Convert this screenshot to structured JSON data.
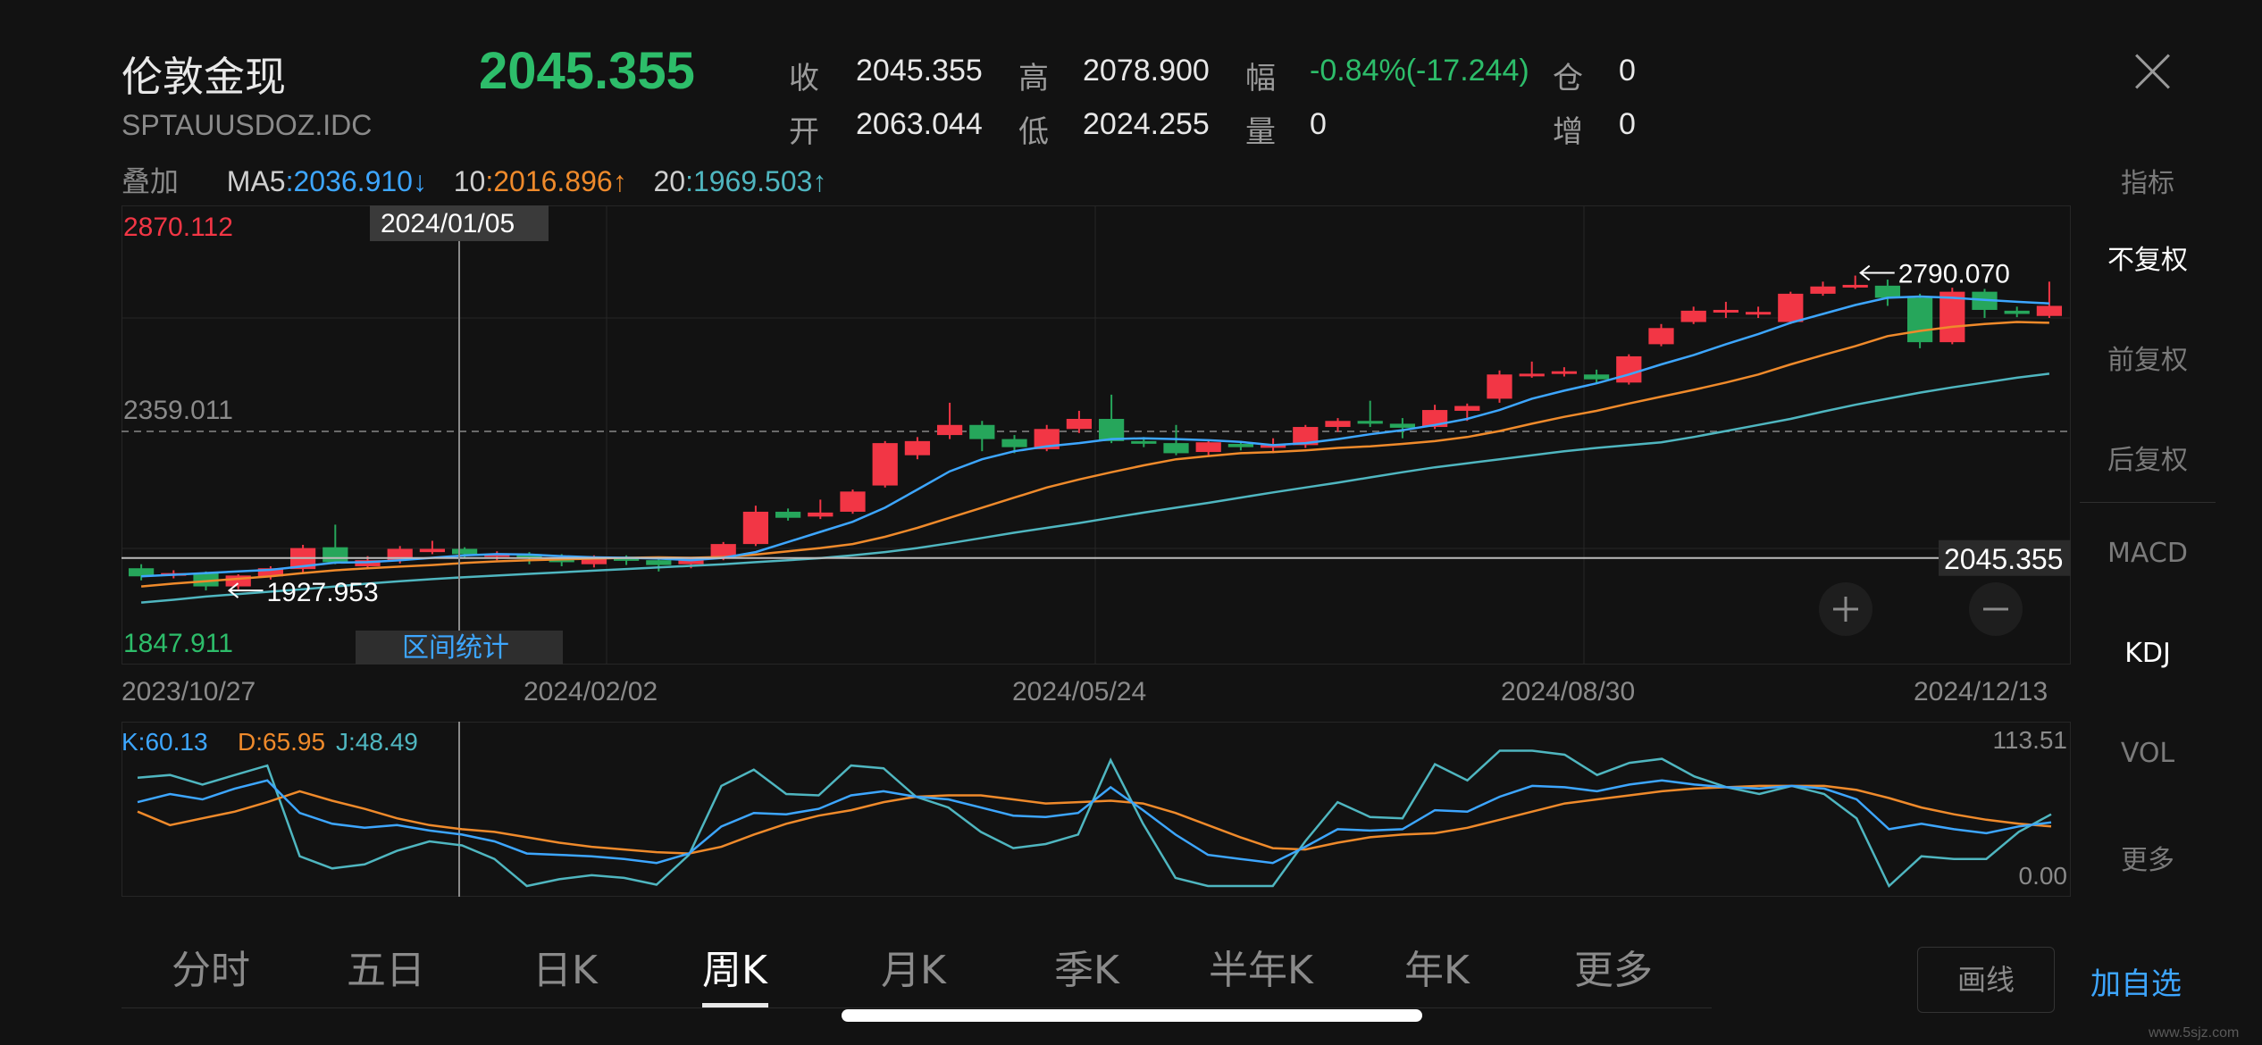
{
  "header": {
    "name": "伦敦金现",
    "code": "SPTAUUSDOZ.IDC",
    "price": "2045.355",
    "quotes": [
      {
        "label": "收",
        "value": "2045.355",
        "color": "#e8e8e8"
      },
      {
        "label": "高",
        "value": "2078.900",
        "color": "#e8e8e8"
      },
      {
        "label": "幅",
        "value": "-0.84%(-17.244)",
        "color": "#2dbd6a"
      },
      {
        "label": "仓",
        "value": "0",
        "color": "#e8e8e8"
      },
      {
        "label": "开",
        "value": "2063.044",
        "color": "#e8e8e8"
      },
      {
        "label": "低",
        "value": "2024.255",
        "color": "#e8e8e8"
      },
      {
        "label": "量",
        "value": "0",
        "color": "#e8e8e8"
      },
      {
        "label": "增",
        "value": "0",
        "color": "#e8e8e8"
      }
    ]
  },
  "ma": {
    "overlay_label": "叠加",
    "ma5_label": "MA5",
    "ma5_sep": ":",
    "ma5_value": "2036.910",
    "ma5_arrow": "↓",
    "ma10_label": "10",
    "ma10_sep": ":",
    "ma10_value": "2016.896",
    "ma10_arrow": "↑",
    "ma20_label": "20",
    "ma20_sep": ":",
    "ma20_value": "1969.503",
    "ma20_arrow": "↑"
  },
  "chart_data": {
    "type": "candlestick",
    "axis_max_label": "2870.112",
    "axis_mid_label": "2359.011",
    "axis_min_label": "1847.911",
    "ylim": [
      1847.911,
      2870.112
    ],
    "high_marker": "2790.070",
    "low_marker": "1927.953",
    "current_price_label": "2045.355",
    "current_price": 2045.355,
    "crosshair_date": "2024/01/05",
    "range_stats_label": "区间统计",
    "x_labels": [
      "2023/10/27",
      "2024/02/02",
      "2024/05/24",
      "2024/08/30",
      "2024/12/13"
    ],
    "colors": {
      "up": "#f23645",
      "down": "#26a65b",
      "ma5": "#3da6ff",
      "ma10": "#ef8a2b",
      "ma20": "#4fb6c0"
    },
    "candles": [
      {
        "o": 2020,
        "c": 2000,
        "h": 2030,
        "l": 1990
      },
      {
        "o": 2003,
        "c": 2008,
        "h": 2015,
        "l": 1995
      },
      {
        "o": 2008,
        "c": 1975,
        "h": 2012,
        "l": 1965
      },
      {
        "o": 1975,
        "c": 2002,
        "h": 2005,
        "l": 1968
      },
      {
        "o": 2000,
        "c": 2020,
        "h": 2025,
        "l": 1992
      },
      {
        "o": 2018,
        "c": 2070,
        "h": 2078,
        "l": 2010
      },
      {
        "o": 2072,
        "c": 2035,
        "h": 2128,
        "l": 2030
      },
      {
        "o": 2025,
        "c": 2040,
        "h": 2050,
        "l": 2018
      },
      {
        "o": 2040,
        "c": 2068,
        "h": 2075,
        "l": 2032
      },
      {
        "o": 2060,
        "c": 2068,
        "h": 2088,
        "l": 2055
      },
      {
        "o": 2068,
        "c": 2055,
        "h": 2072,
        "l": 2045
      },
      {
        "o": 2052,
        "c": 2055,
        "h": 2062,
        "l": 2040
      },
      {
        "o": 2055,
        "c": 2045,
        "h": 2060,
        "l": 2030
      },
      {
        "o": 2045,
        "c": 2035,
        "h": 2055,
        "l": 2025
      },
      {
        "o": 2030,
        "c": 2048,
        "h": 2052,
        "l": 2022
      },
      {
        "o": 2045,
        "c": 2040,
        "h": 2052,
        "l": 2028
      },
      {
        "o": 2040,
        "c": 2028,
        "h": 2045,
        "l": 2012
      },
      {
        "o": 2030,
        "c": 2045,
        "h": 2048,
        "l": 2020
      },
      {
        "o": 2045,
        "c": 2080,
        "h": 2085,
        "l": 2040
      },
      {
        "o": 2080,
        "c": 2160,
        "h": 2175,
        "l": 2075
      },
      {
        "o": 2160,
        "c": 2145,
        "h": 2168,
        "l": 2138
      },
      {
        "o": 2148,
        "c": 2158,
        "h": 2190,
        "l": 2142
      },
      {
        "o": 2160,
        "c": 2210,
        "h": 2215,
        "l": 2155
      },
      {
        "o": 2225,
        "c": 2330,
        "h": 2335,
        "l": 2220
      },
      {
        "o": 2300,
        "c": 2335,
        "h": 2345,
        "l": 2290
      },
      {
        "o": 2350,
        "c": 2375,
        "h": 2430,
        "l": 2340
      },
      {
        "o": 2375,
        "c": 2340,
        "h": 2385,
        "l": 2310
      },
      {
        "o": 2340,
        "c": 2320,
        "h": 2350,
        "l": 2305
      },
      {
        "o": 2315,
        "c": 2365,
        "h": 2375,
        "l": 2310
      },
      {
        "o": 2365,
        "c": 2390,
        "h": 2410,
        "l": 2355
      },
      {
        "o": 2390,
        "c": 2335,
        "h": 2450,
        "l": 2330
      },
      {
        "o": 2335,
        "c": 2330,
        "h": 2345,
        "l": 2320
      },
      {
        "o": 2330,
        "c": 2305,
        "h": 2375,
        "l": 2300
      },
      {
        "o": 2308,
        "c": 2332,
        "h": 2338,
        "l": 2300
      },
      {
        "o": 2328,
        "c": 2320,
        "h": 2335,
        "l": 2312
      },
      {
        "o": 2320,
        "c": 2325,
        "h": 2342,
        "l": 2305
      },
      {
        "o": 2325,
        "c": 2370,
        "h": 2375,
        "l": 2318
      },
      {
        "o": 2370,
        "c": 2385,
        "h": 2392,
        "l": 2358
      },
      {
        "o": 2385,
        "c": 2378,
        "h": 2435,
        "l": 2370
      },
      {
        "o": 2378,
        "c": 2368,
        "h": 2392,
        "l": 2342
      },
      {
        "o": 2370,
        "c": 2412,
        "h": 2425,
        "l": 2365
      },
      {
        "o": 2410,
        "c": 2422,
        "h": 2428,
        "l": 2385
      },
      {
        "o": 2440,
        "c": 2500,
        "h": 2510,
        "l": 2430
      },
      {
        "o": 2502,
        "c": 2502,
        "h": 2532,
        "l": 2492
      },
      {
        "o": 2502,
        "c": 2508,
        "h": 2518,
        "l": 2495
      },
      {
        "o": 2500,
        "c": 2488,
        "h": 2512,
        "l": 2480
      },
      {
        "o": 2480,
        "c": 2545,
        "h": 2550,
        "l": 2475
      },
      {
        "o": 2575,
        "c": 2615,
        "h": 2625,
        "l": 2570
      },
      {
        "o": 2630,
        "c": 2658,
        "h": 2668,
        "l": 2625
      },
      {
        "o": 2655,
        "c": 2660,
        "h": 2680,
        "l": 2640
      },
      {
        "o": 2650,
        "c": 2655,
        "h": 2668,
        "l": 2640
      },
      {
        "o": 2630,
        "c": 2700,
        "h": 2705,
        "l": 2625
      },
      {
        "o": 2700,
        "c": 2718,
        "h": 2730,
        "l": 2695
      },
      {
        "o": 2718,
        "c": 2722,
        "h": 2745,
        "l": 2712
      },
      {
        "o": 2720,
        "c": 2690,
        "h": 2735,
        "l": 2670
      },
      {
        "o": 2690,
        "c": 2580,
        "h": 2700,
        "l": 2565
      },
      {
        "o": 2580,
        "c": 2705,
        "h": 2715,
        "l": 2575
      },
      {
        "o": 2705,
        "c": 2660,
        "h": 2712,
        "l": 2640
      },
      {
        "o": 2658,
        "c": 2650,
        "h": 2668,
        "l": 2642
      },
      {
        "o": 2645,
        "c": 2670,
        "h": 2730,
        "l": 2640
      }
    ],
    "ma5": [
      2000,
      2004,
      2008,
      2012,
      2016,
      2025,
      2034,
      2035,
      2040,
      2046,
      2052,
      2055,
      2054,
      2050,
      2047,
      2046,
      2044,
      2040,
      2046,
      2060,
      2085,
      2110,
      2135,
      2170,
      2215,
      2260,
      2290,
      2310,
      2322,
      2330,
      2340,
      2342,
      2340,
      2337,
      2333,
      2325,
      2330,
      2340,
      2352,
      2362,
      2375,
      2390,
      2412,
      2440,
      2460,
      2478,
      2500,
      2525,
      2548,
      2575,
      2600,
      2628,
      2650,
      2672,
      2690,
      2693,
      2690,
      2685,
      2680,
      2676
    ],
    "ma10": [
      1975,
      1982,
      1988,
      1994,
      2000,
      2008,
      2015,
      2020,
      2024,
      2028,
      2033,
      2037,
      2040,
      2042,
      2044,
      2046,
      2047,
      2046,
      2048,
      2054,
      2062,
      2070,
      2080,
      2098,
      2120,
      2145,
      2170,
      2195,
      2220,
      2240,
      2258,
      2275,
      2290,
      2298,
      2305,
      2308,
      2312,
      2318,
      2322,
      2328,
      2335,
      2345,
      2360,
      2378,
      2395,
      2410,
      2428,
      2445,
      2462,
      2480,
      2500,
      2525,
      2548,
      2570,
      2595,
      2608,
      2618,
      2625,
      2630,
      2628
    ],
    "ma20": [
      1935,
      1942,
      1950,
      1956,
      1962,
      1968,
      1975,
      1982,
      1988,
      1993,
      1998,
      2002,
      2006,
      2010,
      2014,
      2018,
      2022,
      2026,
      2030,
      2035,
      2040,
      2045,
      2052,
      2060,
      2070,
      2082,
      2095,
      2108,
      2120,
      2132,
      2145,
      2158,
      2170,
      2182,
      2195,
      2208,
      2220,
      2232,
      2245,
      2258,
      2270,
      2280,
      2290,
      2300,
      2310,
      2318,
      2325,
      2332,
      2345,
      2360,
      2375,
      2390,
      2408,
      2425,
      2440,
      2455,
      2468,
      2480,
      2492,
      2502
    ]
  },
  "kdj": {
    "k_label": "K:60.13",
    "d_label": "D:65.95",
    "j_label": "J:48.49",
    "max_label": "113.51",
    "min_label": "0.00",
    "k": [
      62,
      68,
      64,
      72,
      78,
      54,
      46,
      43,
      45,
      41,
      38,
      33,
      24,
      23,
      22,
      20,
      17,
      24,
      44,
      54,
      53,
      57,
      67,
      70,
      66,
      64,
      58,
      52,
      51,
      54,
      73,
      56,
      38,
      23,
      20,
      17,
      29,
      42,
      41,
      42,
      56,
      55,
      66,
      74,
      73,
      70,
      75,
      78,
      75,
      73,
      72,
      74,
      72,
      64,
      42,
      46,
      42,
      39,
      44,
      47
    ],
    "d": [
      55,
      45,
      50,
      55,
      62,
      70,
      63,
      57,
      50,
      45,
      42,
      40,
      36,
      32,
      29,
      27,
      25,
      24,
      29,
      38,
      46,
      52,
      56,
      62,
      66,
      67,
      67,
      64,
      61,
      62,
      63,
      61,
      54,
      45,
      36,
      28,
      27,
      32,
      36,
      38,
      39,
      43,
      49,
      55,
      61,
      64,
      67,
      70,
      72,
      73,
      74,
      74,
      74,
      71,
      65,
      58,
      53,
      49,
      46,
      44
    ],
    "j": [
      80,
      82,
      75,
      82,
      89,
      22,
      13,
      16,
      26,
      33,
      30,
      20,
      0,
      5,
      8,
      6,
      1,
      23,
      74,
      86,
      68,
      67,
      89,
      87,
      66,
      58,
      40,
      28,
      31,
      38,
      93,
      46,
      6,
      0,
      0,
      0,
      33,
      62,
      51,
      50,
      90,
      78,
      100,
      100,
      97,
      82,
      91,
      94,
      81,
      73,
      68,
      74,
      68,
      50,
      0,
      22,
      20,
      20,
      40,
      53
    ],
    "colors": {
      "k": "#3da6ff",
      "d": "#ef8a2b",
      "j": "#4fb6c0"
    }
  },
  "side_menu": [
    "不复权",
    "前复权",
    "后复权",
    "MACD",
    "KDJ",
    "VOL",
    "更多"
  ],
  "side_top_label": "指标",
  "tabs": [
    "分时",
    "五日",
    "日K",
    "周K",
    "月K",
    "季K",
    "半年K",
    "年K",
    "更多"
  ],
  "bottom": {
    "draw_label": "画线",
    "add_label": "加自选"
  },
  "watermark": "www.5sjz.com"
}
